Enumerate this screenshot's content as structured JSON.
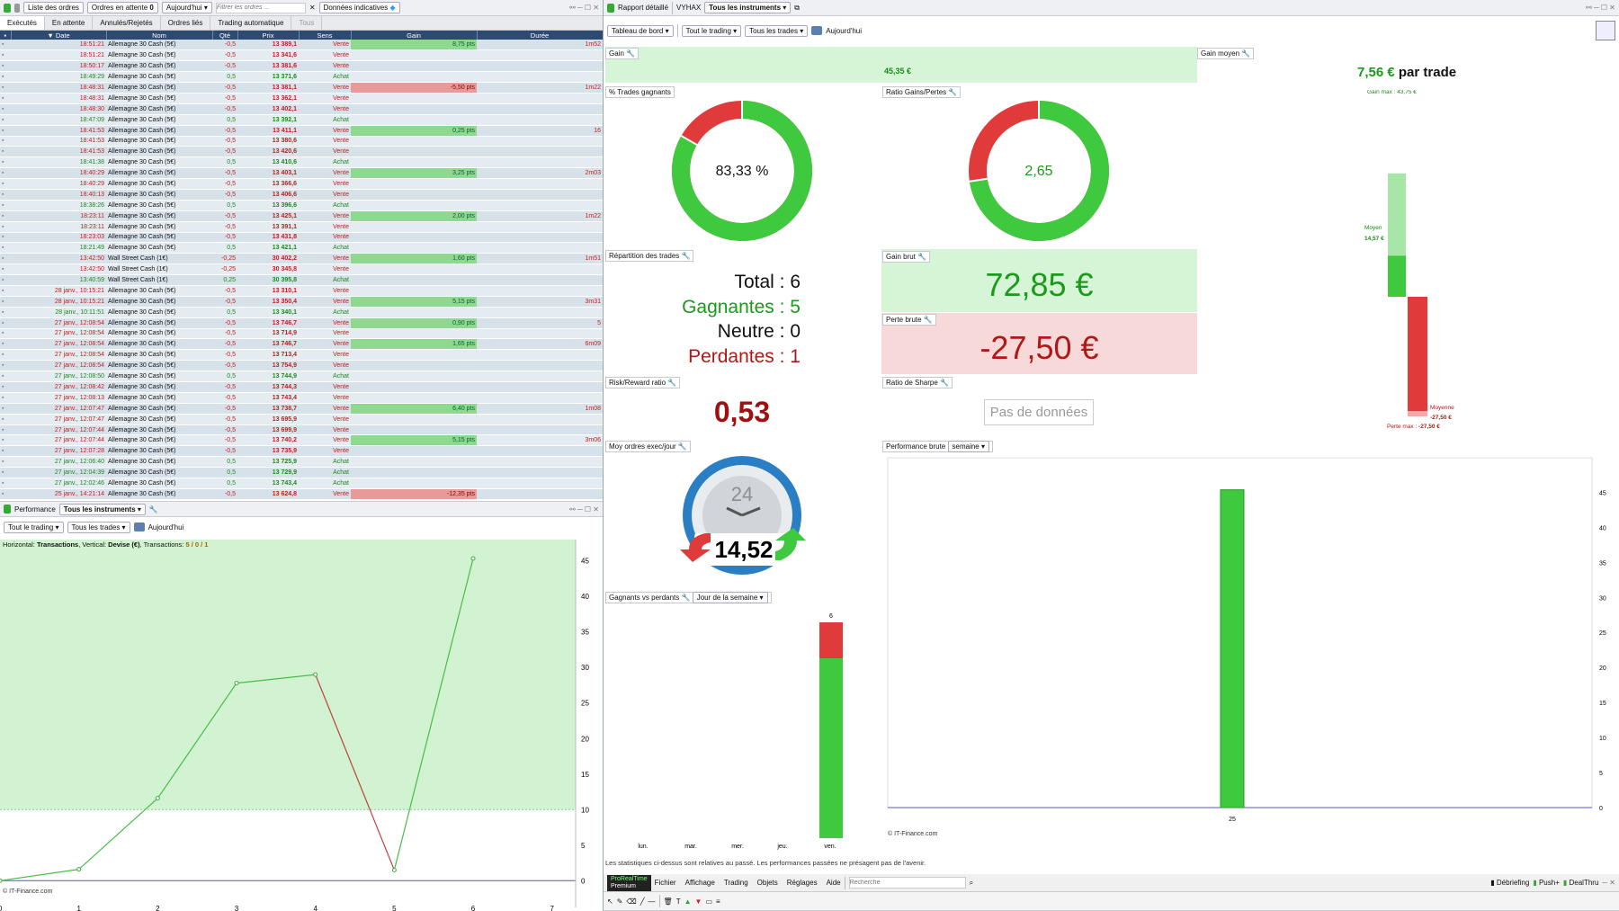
{
  "left_top": {
    "toolbar": {
      "orders_list": "Liste des ordres",
      "pending_orders": "Ordres en attente",
      "pending_count": "0",
      "date_filter": "Aujourd'hui",
      "filter_placeholder": "Filtrer les ordres ...",
      "indicative": "Données indicatives"
    },
    "tabs": [
      "Exécutés",
      "En attente",
      "Annulés/Rejetés",
      "Ordres liés",
      "Trading automatique",
      "Tous"
    ],
    "columns": {
      "date": "Date",
      "name": "Nom",
      "qty": "Qté",
      "price": "Prix",
      "side": "Sens",
      "gain": "Gain",
      "duration": "Durée"
    },
    "rows": [
      [
        "18:51:21",
        "Allemagne 30 Cash (5€)",
        "-0,5",
        "13 389,1",
        "Vente",
        "8,75 pts",
        "1m52"
      ],
      [
        "18:51:21",
        "Allemagne 30 Cash (5€)",
        "-0,5",
        "13 341,6",
        "Vente",
        "",
        ""
      ],
      [
        "18:50:17",
        "Allemagne 30 Cash (5€)",
        "-0,5",
        "13 381,6",
        "Vente",
        "",
        ""
      ],
      [
        "18:49:29",
        "Allemagne 30 Cash (5€)",
        "0,5",
        "13 371,6",
        "Achat",
        "",
        ""
      ],
      [
        "18:48:31",
        "Allemagne 30 Cash (5€)",
        "-0,5",
        "13 381,1",
        "Vente",
        "-5,50 pts",
        "1m22"
      ],
      [
        "18:48:31",
        "Allemagne 30 Cash (5€)",
        "-0,5",
        "13 362,1",
        "Vente",
        "",
        ""
      ],
      [
        "18:48:30",
        "Allemagne 30 Cash (5€)",
        "-0,5",
        "13 402,1",
        "Vente",
        "",
        ""
      ],
      [
        "18:47:09",
        "Allemagne 30 Cash (5€)",
        "0,5",
        "13 392,1",
        "Achat",
        "",
        ""
      ],
      [
        "18:41:53",
        "Allemagne 30 Cash (5€)",
        "-0,5",
        "13 411,1",
        "Vente",
        "0,25 pts",
        "16"
      ],
      [
        "18:41:53",
        "Allemagne 30 Cash (5€)",
        "-0,5",
        "13 380,6",
        "Vente",
        "",
        ""
      ],
      [
        "18:41:53",
        "Allemagne 30 Cash (5€)",
        "-0,5",
        "13 420,6",
        "Vente",
        "",
        ""
      ],
      [
        "18:41:38",
        "Allemagne 30 Cash (5€)",
        "0,5",
        "13 410,6",
        "Achat",
        "",
        ""
      ],
      [
        "18:40:29",
        "Allemagne 30 Cash (5€)",
        "-0,5",
        "13 403,1",
        "Vente",
        "3,25 pts",
        "2m03"
      ],
      [
        "18:40:29",
        "Allemagne 30 Cash (5€)",
        "-0,5",
        "13 366,6",
        "Vente",
        "",
        ""
      ],
      [
        "18:40:13",
        "Allemagne 30 Cash (5€)",
        "-0,5",
        "13 406,6",
        "Vente",
        "",
        ""
      ],
      [
        "18:38:26",
        "Allemagne 30 Cash (5€)",
        "0,5",
        "13 396,6",
        "Achat",
        "",
        ""
      ],
      [
        "18:23:11",
        "Allemagne 30 Cash (5€)",
        "-0,5",
        "13 425,1",
        "Vente",
        "2,00 pts",
        "1m22"
      ],
      [
        "18:23:11",
        "Allemagne 30 Cash (5€)",
        "-0,5",
        "13 391,1",
        "Vente",
        "",
        ""
      ],
      [
        "18:23:03",
        "Allemagne 30 Cash (5€)",
        "-0,5",
        "13 431,8",
        "Vente",
        "",
        ""
      ],
      [
        "18:21:49",
        "Allemagne 30 Cash (5€)",
        "0,5",
        "13 421,1",
        "Achat",
        "",
        ""
      ],
      [
        "13:42:50",
        "Wall Street Cash (1€)",
        "-0,25",
        "30 402,2",
        "Vente",
        "1,60 pts",
        "1m51"
      ],
      [
        "13:42:50",
        "Wall Street Cash (1€)",
        "-0,25",
        "30 345,8",
        "Vente",
        "",
        ""
      ],
      [
        "13:40:59",
        "Wall Street Cash (1€)",
        "0,25",
        "30 395,8",
        "Achat",
        "",
        ""
      ],
      [
        "28 janv., 10:15:21",
        "Allemagne 30 Cash (5€)",
        "-0,5",
        "13 310,1",
        "Vente",
        "",
        ""
      ],
      [
        "28 janv., 10:15:21",
        "Allemagne 30 Cash (5€)",
        "-0,5",
        "13 350,4",
        "Vente",
        "5,15 pts",
        "3m31"
      ],
      [
        "28 janv., 10:11:51",
        "Allemagne 30 Cash (5€)",
        "0,5",
        "13 340,1",
        "Achat",
        "",
        ""
      ],
      [
        "27 janv., 12:08:54",
        "Allemagne 30 Cash (5€)",
        "-0,5",
        "13 746,7",
        "Vente",
        "0,90 pts",
        "5"
      ],
      [
        "27 janv., 12:08:54",
        "Allemagne 30 Cash (5€)",
        "-0,5",
        "13 714,9",
        "Vente",
        "",
        ""
      ],
      [
        "27 janv., 12:08:54",
        "Allemagne 30 Cash (5€)",
        "-0,5",
        "13 746,7",
        "Vente",
        "1,65 pts",
        "6m09"
      ],
      [
        "27 janv., 12:08:54",
        "Allemagne 30 Cash (5€)",
        "-0,5",
        "13 713,4",
        "Vente",
        "",
        ""
      ],
      [
        "27 janv., 12:08:54",
        "Allemagne 30 Cash (5€)",
        "-0,5",
        "13 754,9",
        "Vente",
        "",
        ""
      ],
      [
        "27 janv., 12:08:50",
        "Allemagne 30 Cash (5€)",
        "0,5",
        "13 744,9",
        "Achat",
        "",
        ""
      ],
      [
        "27 janv., 12:08:42",
        "Allemagne 30 Cash (5€)",
        "-0,5",
        "13 744,3",
        "Vente",
        "",
        ""
      ],
      [
        "27 janv., 12:08:13",
        "Allemagne 30 Cash (5€)",
        "-0,5",
        "13 743,4",
        "Vente",
        "",
        ""
      ],
      [
        "27 janv., 12:07:47",
        "Allemagne 30 Cash (5€)",
        "-0,5",
        "13 738,7",
        "Vente",
        "6,40 pts",
        "1m08"
      ],
      [
        "27 janv., 12:07:47",
        "Allemagne 30 Cash (5€)",
        "-0,5",
        "13 695,9",
        "Vente",
        "",
        ""
      ],
      [
        "27 janv., 12:07:44",
        "Allemagne 30 Cash (5€)",
        "-0,5",
        "13 699,9",
        "Vente",
        "",
        ""
      ],
      [
        "27 janv., 12:07:44",
        "Allemagne 30 Cash (5€)",
        "-0,5",
        "13 740,2",
        "Vente",
        "5,15 pts",
        "3m06"
      ],
      [
        "27 janv., 12:07:28",
        "Allemagne 30 Cash (5€)",
        "-0,5",
        "13 735,9",
        "Vente",
        "",
        ""
      ],
      [
        "27 janv., 12:06:40",
        "Allemagne 30 Cash (5€)",
        "0,5",
        "13 725,9",
        "Achat",
        "",
        ""
      ],
      [
        "27 janv., 12:04:39",
        "Allemagne 30 Cash (5€)",
        "0,5",
        "13 729,9",
        "Achat",
        "",
        ""
      ],
      [
        "27 janv., 12:02:46",
        "Allemagne 30 Cash (5€)",
        "0,5",
        "13 743,4",
        "Achat",
        "",
        ""
      ],
      [
        "25 janv., 14:21:14",
        "Allemagne 30 Cash (5€)",
        "-0,5",
        "13 624,8",
        "Vente",
        "-12,35 pts",
        ""
      ]
    ]
  },
  "perf": {
    "title": "Performance",
    "instrument": "Tous les instruments",
    "trading": "Tout le trading",
    "trades": "Tous les trades",
    "today": "Aujourd'hui",
    "info_prefix": "Horizontal: ",
    "info_h": "Transactions",
    "info_mid": ", Vertical: ",
    "info_v": "Devise (€)",
    "info_suffix": ", Transactions: ",
    "info_counts": "5 / 0 / 1",
    "footer": "© IT-Finance.com"
  },
  "right": {
    "toolbar": {
      "report": "Rapport détaillé",
      "account": "VYHAX",
      "instrument": "Tous les instruments",
      "dashboard": "Tableau de bord",
      "trading": "Tout le trading",
      "trades": "Tous les trades",
      "today": "Aujourd'hui"
    },
    "gain": {
      "title": "Gain",
      "value": "45,35 €"
    },
    "avg_gain": {
      "title": "Gain moyen",
      "value": "7,56 €",
      "suffix": "par trade",
      "max_label": "Gain max : ",
      "max_value": "43,75 €",
      "avg_label": "Moyen",
      "avg_value": "14,57 €",
      "loss_avg_label": "Moyenne",
      "loss_avg_value": "-27,50 €",
      "loss_max_label": "Perte max : ",
      "loss_max_value": "-27,50 €"
    },
    "win_pct": {
      "title": "% Trades gagnants",
      "value": "83,33 %",
      "fraction": 0.8333
    },
    "ratio": {
      "title": "Ratio Gains/Pertes",
      "value": "2,65",
      "fraction": 0.726
    },
    "distribution": {
      "title": "Répartition des trades",
      "total": "Total : 6",
      "winners": "Gagnantes : 5",
      "neutral": "Neutre : 0",
      "losers": "Perdantes : 1"
    },
    "gross_gain": {
      "title": "Gain brut",
      "value": "72,85 €"
    },
    "gross_loss": {
      "title": "Perte brute",
      "value": "-27,50 €"
    },
    "rr": {
      "title": "Risk/Reward ratio",
      "value": "0,53"
    },
    "sharpe": {
      "title": "Ratio de Sharpe",
      "value": "Pas de données"
    },
    "orders_day": {
      "title": "Moy ordres exec/jour",
      "value": "14,52",
      "clock": "24"
    },
    "wvl": {
      "title": "Gagnants vs perdants",
      "mode": "Jour de la semaine",
      "days": [
        "lun.",
        "mar.",
        "mer.",
        "jeu.",
        "ven."
      ],
      "top_label": "6"
    },
    "gross_perf": {
      "title": "Performance brute",
      "period": "semaine",
      "footer": "© IT-Finance.com",
      "x_label": "25"
    },
    "disclaimer": "Les statistiques ci-dessus sont relatives au passé. Les performances passées ne présagent pas de l'avenir."
  },
  "bottom_bar": {
    "brand": "ProRealTime",
    "edition": "Premium",
    "menu": [
      "Fichier",
      "Affichage",
      "Trading",
      "Objets",
      "Réglages",
      "Aide"
    ],
    "search_placeholder": "Recherche",
    "debrief": "Débriefing",
    "push": "Push+",
    "dealthru": "DealThru"
  },
  "colors": {
    "green": "#3ec93e",
    "red": "#e03a3a",
    "header": "#2d4a72"
  },
  "chart_data": [
    {
      "type": "line",
      "x": [
        0,
        1,
        2,
        3,
        4,
        5,
        6
      ],
      "values": [
        0,
        1.6,
        11.6,
        27.8,
        29,
        1.5,
        45.35
      ],
      "xlim": [
        0,
        7.3
      ],
      "ylim": [
        -3,
        48
      ],
      "yticks": [
        0,
        5,
        10,
        15,
        20,
        25,
        30,
        35,
        40,
        45
      ],
      "xticks": [
        0,
        1,
        2,
        3,
        4,
        5,
        6,
        7
      ],
      "title": "",
      "xlabel": "",
      "ylabel": ""
    },
    {
      "type": "bar",
      "categories": [
        "lun.",
        "mar.",
        "mer.",
        "jeu.",
        "ven."
      ],
      "series": [
        {
          "name": "",
          "values": [
            0,
            0,
            0,
            0,
            5
          ]
        },
        {
          "name": "",
          "values": [
            0,
            0,
            0,
            0,
            1
          ]
        }
      ]
    },
    {
      "type": "bar",
      "categories": [
        "25"
      ],
      "values": [
        45.35
      ],
      "ylim": [
        0,
        48
      ],
      "yticks": [
        0,
        5,
        10,
        15,
        20,
        25,
        30,
        35,
        40,
        45
      ]
    }
  ]
}
